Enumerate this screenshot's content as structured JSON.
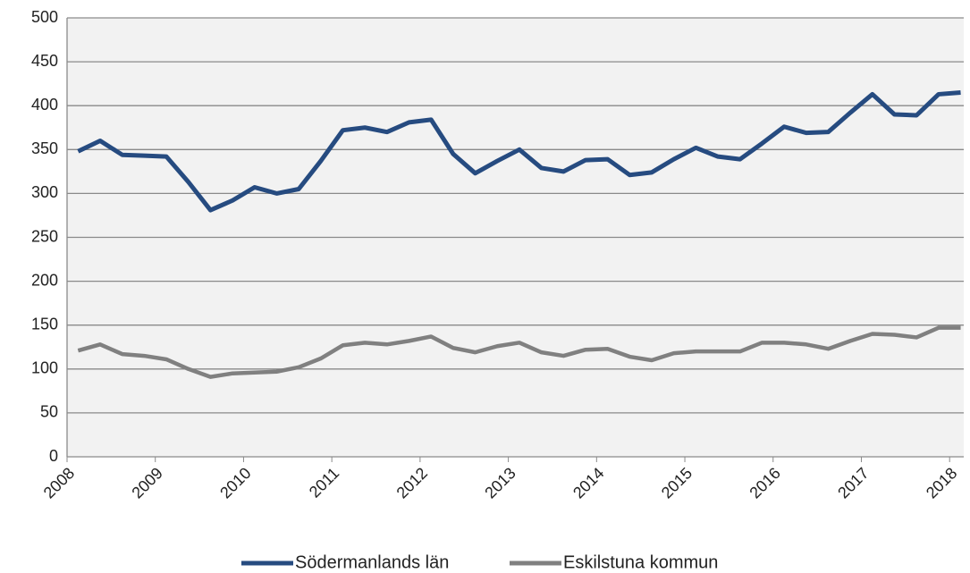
{
  "chart_data": {
    "type": "line",
    "categories": [
      "2008",
      null,
      null,
      null,
      "2009",
      null,
      null,
      null,
      "2010",
      null,
      null,
      null,
      "2011",
      null,
      null,
      null,
      "2012",
      null,
      null,
      null,
      "2013",
      null,
      null,
      null,
      "2014",
      null,
      null,
      null,
      "2015",
      null,
      null,
      null,
      "2016",
      null,
      null,
      null,
      "2017",
      null,
      null,
      null,
      "2018"
    ],
    "series": [
      {
        "name": "Södermanlands län",
        "color": "#264b80",
        "values": [
          348,
          360,
          344,
          343,
          342,
          313,
          281,
          292,
          307,
          300,
          305,
          337,
          372,
          375,
          370,
          381,
          384,
          345,
          323,
          337,
          350,
          329,
          325,
          338,
          339,
          321,
          324,
          339,
          352,
          342,
          339,
          357,
          376,
          369,
          370,
          392,
          413,
          390,
          389,
          413,
          415
        ]
      },
      {
        "name": "Eskilstuna kommun",
        "color": "#808080",
        "values": [
          121,
          128,
          117,
          115,
          111,
          100,
          91,
          95,
          96,
          97,
          102,
          112,
          127,
          130,
          128,
          132,
          137,
          124,
          119,
          126,
          130,
          119,
          115,
          122,
          123,
          114,
          110,
          118,
          120,
          120,
          120,
          130,
          130,
          128,
          123,
          132,
          140,
          139,
          136,
          147,
          147
        ]
      }
    ],
    "ylim": [
      0,
      500
    ],
    "yticks": [
      0,
      50,
      100,
      150,
      200,
      250,
      300,
      350,
      400,
      450,
      500
    ],
    "grid": true,
    "legend": "bottom"
  }
}
